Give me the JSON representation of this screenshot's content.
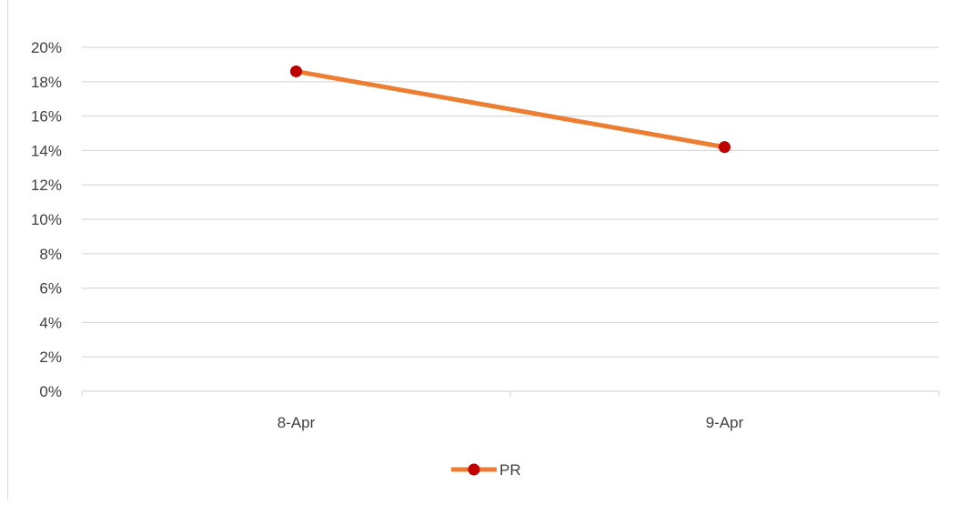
{
  "chart_data": {
    "type": "line",
    "categories": [
      "8-Apr",
      "9-Apr"
    ],
    "series": [
      {
        "name": "PR",
        "values": [
          0.186,
          0.142
        ]
      }
    ],
    "ylim": [
      0,
      0.2
    ],
    "yticks": [
      0,
      0.02,
      0.04,
      0.06,
      0.08,
      0.1,
      0.12,
      0.14,
      0.16,
      0.18,
      0.2
    ],
    "ytick_labels": [
      "0%",
      "2%",
      "4%",
      "6%",
      "8%",
      "10%",
      "12%",
      "14%",
      "16%",
      "18%",
      "20%"
    ],
    "title": "",
    "xlabel": "",
    "ylabel": "",
    "grid": true,
    "legend_position": "bottom",
    "colors": {
      "line": "#ED7D31",
      "marker": "#C00000",
      "grid": "#d9d9d9",
      "text": "#404040"
    }
  }
}
